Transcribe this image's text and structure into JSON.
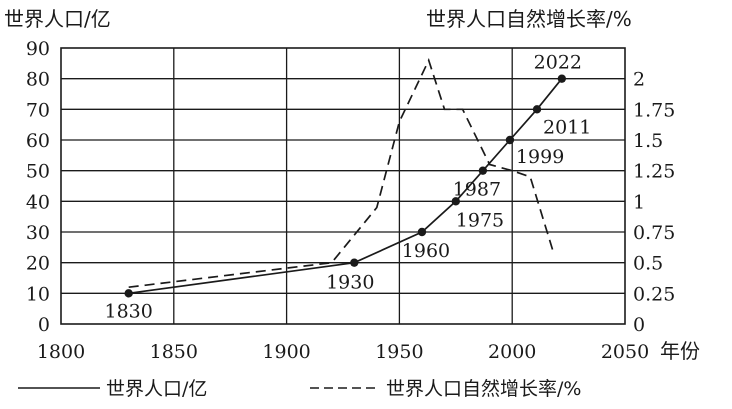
{
  "chart_data": {
    "type": "line",
    "title": "",
    "y_left_label": "世界人口/亿",
    "y_right_label": "世界人口自然增长率/%",
    "x_label": "年份",
    "xlim": [
      1800,
      2050
    ],
    "x_ticks": [
      "1800",
      "1850",
      "1900",
      "1950",
      "2000",
      "2050"
    ],
    "ylim_left": [
      0,
      90
    ],
    "y_left_ticks": [
      "0",
      "10",
      "20",
      "30",
      "40",
      "50",
      "60",
      "70",
      "80",
      "90"
    ],
    "ylim_right": [
      0,
      2.25
    ],
    "y_right_ticks": [
      "0",
      "0.25",
      "0.5",
      "0.75",
      "1",
      "1.25",
      "1.5",
      "1.75",
      "2"
    ],
    "grid": true,
    "legend_position": "bottom",
    "series": [
      {
        "name": "世界人口/亿",
        "axis": "left",
        "style": "solid",
        "markers": true,
        "x": [
          1830,
          1930,
          1960,
          1975,
          1987,
          1999,
          2011,
          2022
        ],
        "y": [
          10,
          20,
          30,
          40,
          50,
          60,
          70,
          80
        ],
        "point_labels": [
          "1830",
          "1930",
          "1960",
          "1975",
          "1987",
          "1999",
          "2011",
          "2022"
        ]
      },
      {
        "name": "世界人口自然增长率/%",
        "axis": "right",
        "style": "dashed",
        "markers": false,
        "x": [
          1830,
          1920,
          1940,
          1950,
          1963,
          1970,
          1978,
          1990,
          2000,
          2008,
          2018
        ],
        "y": [
          0.3,
          0.5,
          0.95,
          1.65,
          2.15,
          1.75,
          1.75,
          1.3,
          1.25,
          1.2,
          0.6
        ]
      }
    ]
  }
}
